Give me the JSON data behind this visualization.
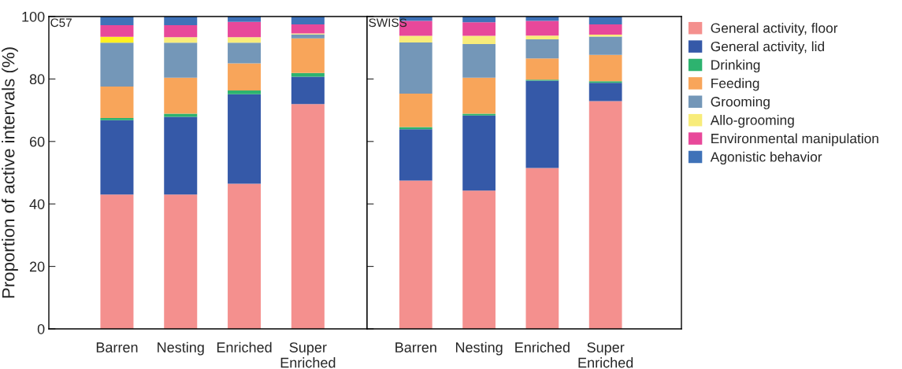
{
  "chart_data": [
    {
      "type": "bar",
      "stacked": true,
      "ylabel": "Proportion of active intervals (%)",
      "annotations": [
        "C57"
      ],
      "categories": [
        "Barren",
        "Nesting",
        "Enriched",
        "Super\nEnriched"
      ],
      "ylim": [
        0,
        100
      ],
      "yticks": [
        0,
        20,
        40,
        60,
        80,
        100
      ],
      "grid": false,
      "legend": false,
      "series": [
        {
          "color": "#f4908e",
          "values": [
            43.0,
            43.0,
            46.5,
            72.0
          ]
        },
        {
          "color": "#3559a8",
          "values": [
            23.8,
            24.9,
            28.6,
            8.7
          ]
        },
        {
          "color": "#2db36f",
          "values": [
            0.7,
            1.0,
            1.2,
            1.2
          ]
        },
        {
          "color": "#f8a55a",
          "values": [
            10.1,
            11.5,
            8.7,
            11.1
          ]
        },
        {
          "color": "#7497b8",
          "values": [
            14.0,
            11.2,
            6.6,
            1.3
          ]
        },
        {
          "colors": [
            "#fff020",
            "#f8ec7a",
            "#f8ec7a",
            "#f8ec7a"
          ],
          "values": [
            1.9,
            1.8,
            1.8,
            0.3
          ]
        },
        {
          "color": "#e8489a",
          "values": [
            3.7,
            3.8,
            4.9,
            2.9
          ]
        },
        {
          "color": "#3f72b8",
          "values": [
            2.8,
            2.8,
            1.7,
            2.5
          ]
        }
      ]
    },
    {
      "type": "bar",
      "stacked": true,
      "annotations": [
        "SWISS"
      ],
      "categories": [
        "Barren",
        "Nesting",
        "Enriched",
        "Super\nEnriched"
      ],
      "ylim": [
        0,
        100
      ],
      "yticks": [
        0,
        20,
        40,
        60,
        80,
        100
      ],
      "tick_labels": "x",
      "grid": false,
      "legend": "right",
      "series": [
        {
          "name": "General activity, floor",
          "color": "#f4908e",
          "values": [
            47.5,
            44.3,
            51.5,
            72.9
          ]
        },
        {
          "name": "General activity, lid",
          "color": "#3559a8",
          "values": [
            16.4,
            24.0,
            28.0,
            5.9
          ]
        },
        {
          "name": "Drinking",
          "color": "#2db36f",
          "values": [
            0.7,
            0.6,
            0.3,
            0.5
          ]
        },
        {
          "name": "Feeding",
          "color": "#f8a55a",
          "values": [
            10.7,
            11.5,
            6.8,
            8.4
          ]
        },
        {
          "name": "Grooming",
          "color": "#7497b8",
          "values": [
            16.4,
            10.8,
            6.1,
            5.9
          ]
        },
        {
          "name": "Allo-grooming",
          "color": "#f8ec7a",
          "values": [
            2.1,
            2.6,
            1.2,
            0.6
          ]
        },
        {
          "name": "Environmental manipulation",
          "color": "#e8489a",
          "values": [
            4.8,
            4.4,
            4.7,
            3.3
          ]
        },
        {
          "name": "Agonistic behavior",
          "color": "#3f72b8",
          "values": [
            1.4,
            1.8,
            1.4,
            2.5
          ]
        }
      ]
    }
  ]
}
